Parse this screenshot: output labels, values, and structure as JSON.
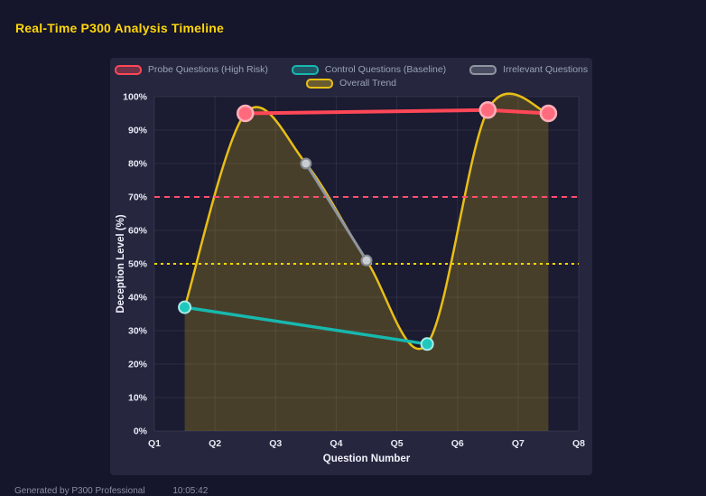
{
  "page": {
    "title": "Real-Time P300 Analysis Timeline",
    "footer": "Generated by P300 Professional",
    "footer_time": "10:05:42"
  },
  "legend": {
    "items": [
      {
        "label": "Probe Questions (High Risk)",
        "color": "#ff4757"
      },
      {
        "label": "Control Questions (Baseline)",
        "color": "#17b8ae"
      },
      {
        "label": "Irrelevant Questions",
        "color": "#8f95a0"
      },
      {
        "label": "Overall Trend",
        "color": "#e8bf16"
      }
    ]
  },
  "chart_data": {
    "type": "line",
    "title": "Real-Time P300 Analysis Timeline",
    "xlabel": "Question Number",
    "ylabel": "Deception Level (%)",
    "x_ticks": [
      "Q1",
      "Q2",
      "Q3",
      "Q4",
      "Q5",
      "Q6",
      "Q7",
      "Q8"
    ],
    "xlim": [
      1,
      8
    ],
    "ylim": [
      0,
      100
    ],
    "y_tick_step": 10,
    "grid": true,
    "legend_position": "top",
    "series": [
      {
        "name": "Probe Questions (High Risk)",
        "color": "#ff4757",
        "line_width": 4,
        "point_radius": 8.5,
        "point_fill": "#ff6b7d",
        "point_stroke": "#ffb0bb",
        "point_stroke_width": 2.5,
        "points": [
          {
            "x": 2.5,
            "y": 95
          },
          {
            "x": 6.5,
            "y": 96
          },
          {
            "x": 7.5,
            "y": 95
          }
        ]
      },
      {
        "name": "Control Questions (Baseline)",
        "color": "#17b8ae",
        "line_width": 3.5,
        "point_radius": 6.5,
        "point_fill": "#1fc8bd",
        "point_stroke": "#a8ece6",
        "point_stroke_width": 2,
        "points": [
          {
            "x": 1.5,
            "y": 37
          },
          {
            "x": 5.5,
            "y": 26
          }
        ]
      },
      {
        "name": "Irrelevant Questions",
        "color": "#8f95a0",
        "line_width": 3,
        "point_radius": 5.5,
        "point_fill": "#c8cdd4",
        "point_stroke": "#83878f",
        "point_stroke_width": 2,
        "points": [
          {
            "x": 3.5,
            "y": 80
          },
          {
            "x": 4.5,
            "y": 51
          }
        ]
      },
      {
        "name": "Overall Trend",
        "color": "#e8bf16",
        "line_width": 2.5,
        "smooth": true,
        "area": true,
        "area_opacity": 0.22,
        "points": [
          {
            "x": 1.5,
            "y": 37
          },
          {
            "x": 2.5,
            "y": 95
          },
          {
            "x": 3.5,
            "y": 80
          },
          {
            "x": 4.5,
            "y": 51
          },
          {
            "x": 5.5,
            "y": 26
          },
          {
            "x": 6.5,
            "y": 96
          },
          {
            "x": 7.5,
            "y": 95
          }
        ]
      }
    ],
    "thresholds": [
      {
        "y": 70,
        "color": "#ff4d6d",
        "dash": "6 5"
      },
      {
        "y": 50,
        "color": "#ffd700",
        "dash": "3 4"
      }
    ]
  }
}
